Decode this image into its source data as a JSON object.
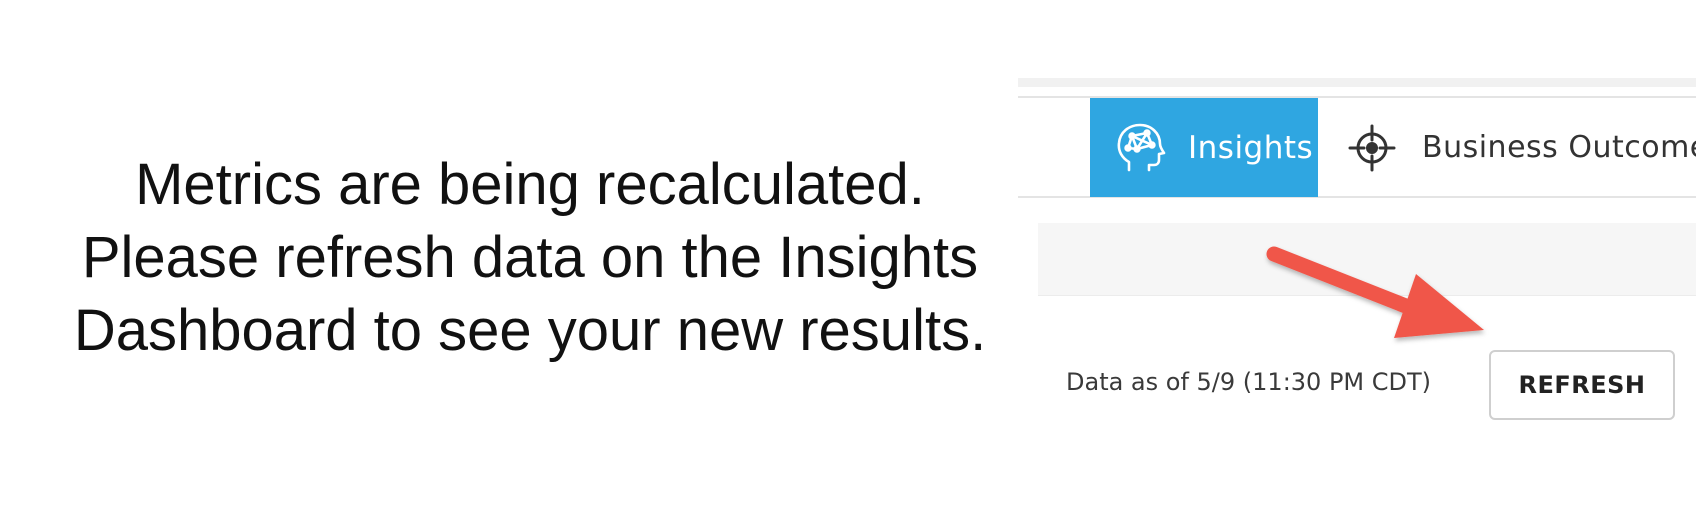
{
  "message": {
    "lines": [
      "Metrics are being recalculated.",
      "Please refresh data on the Insights",
      "Dashboard to see your new results."
    ]
  },
  "nav": {
    "tabs": [
      {
        "label": "Insights",
        "icon": "brain-head-icon",
        "active": true
      },
      {
        "label": "Business Outcomes",
        "icon": "target-crosshair-icon",
        "active": false
      }
    ],
    "active_color": "#2fa6e1"
  },
  "data_status": {
    "label": "Data as of 5/9 (11:30 PM CDT)"
  },
  "refresh": {
    "label": "REFRESH"
  },
  "annotation": {
    "arrow_color": "#f0564a",
    "icon": "arrow-pointer-icon"
  }
}
